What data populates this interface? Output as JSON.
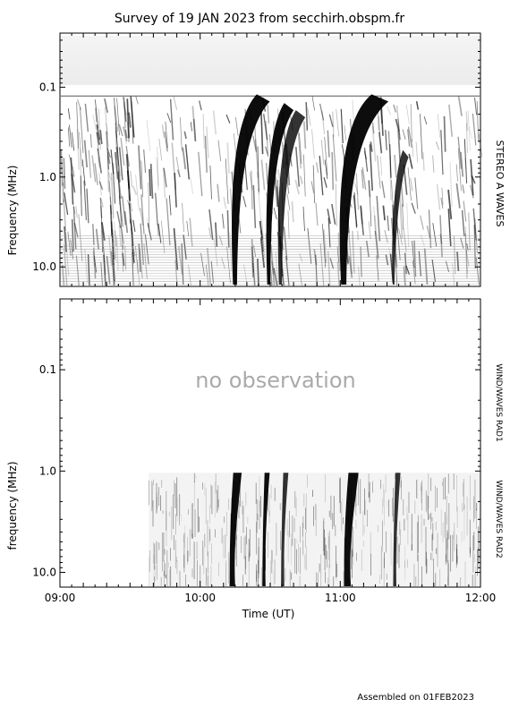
{
  "title": "Survey of 19 JAN 2023 from secchirh.obspm.fr",
  "footer": "Assembled on 01FEB2023",
  "colors": {
    "background": "#ffffff",
    "ink": "#000000",
    "no_obs_text": "#aaaaaa"
  },
  "chart_data": [
    {
      "type": "heatmap",
      "panel": "top",
      "instrument": "STEREO A WAVES",
      "ylabel": "Frequency (MHz)",
      "y_scale": "log",
      "y_inverted": true,
      "ylim_mhz": [
        0.025,
        16.5
      ],
      "y_ticks": [
        {
          "value": 0.1,
          "label": "0.1"
        },
        {
          "value": 1.0,
          "label": "1.0"
        },
        {
          "value": 10.0,
          "label": "10.0"
        }
      ],
      "xlim_hours_ut": [
        "09:00",
        "12:00"
      ],
      "bursts": [
        {
          "start": "10:13",
          "end": "10:20",
          "upper_freq_mhz": 0.12,
          "intensity": "strong"
        },
        {
          "start": "10:28",
          "end": "10:33",
          "upper_freq_mhz": 0.15,
          "intensity": "strong"
        },
        {
          "start": "10:33",
          "end": "10:38",
          "upper_freq_mhz": 0.18,
          "intensity": "moderate"
        },
        {
          "start": "10:59",
          "end": "11:08",
          "upper_freq_mhz": 0.12,
          "intensity": "strong"
        },
        {
          "start": "11:22",
          "end": "11:25",
          "upper_freq_mhz": 0.5,
          "intensity": "moderate"
        }
      ]
    },
    {
      "type": "heatmap",
      "panel": "bottom",
      "instruments": [
        "WIND/WAVES RAD1",
        "WIND/WAVES RAD2"
      ],
      "ylabel": "frequency (MHz)",
      "y_scale": "log",
      "y_inverted": true,
      "ylim_mhz": [
        0.02,
        14.0
      ],
      "y_ticks": [
        {
          "value": 0.1,
          "label": "0.1"
        },
        {
          "value": 1.0,
          "label": "1.0"
        },
        {
          "value": 10.0,
          "label": "10.0"
        }
      ],
      "rad1_status": "no observation",
      "rad2_data_start": "09:38",
      "xlabel": "Time (UT)",
      "x_ticks": [
        "09:00",
        "10:00",
        "11:00",
        "12:00"
      ],
      "xlim_hours_ut": [
        "09:00",
        "12:00"
      ],
      "bursts": [
        {
          "start": "10:13",
          "end": "10:17",
          "intensity": "strong"
        },
        {
          "start": "10:27",
          "end": "10:29",
          "intensity": "strong"
        },
        {
          "start": "10:35",
          "end": "10:37",
          "intensity": "moderate"
        },
        {
          "start": "11:02",
          "end": "11:07",
          "intensity": "strong"
        },
        {
          "start": "11:23",
          "end": "11:25",
          "intensity": "moderate"
        }
      ]
    }
  ]
}
